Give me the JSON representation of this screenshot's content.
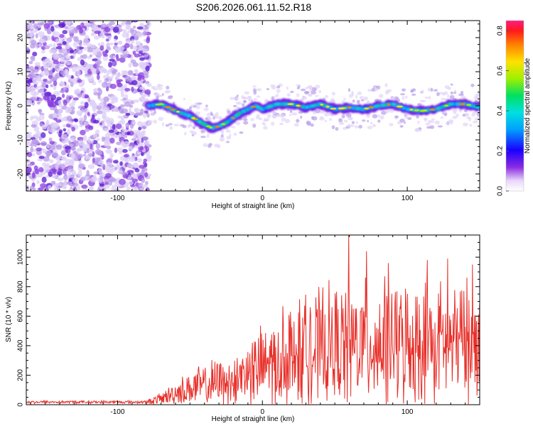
{
  "title": "S206.2026.061.11.52.R18",
  "chart_data": [
    {
      "type": "heatmap",
      "xlabel": "Height of straight line (km)",
      "ylabel": "Frequency (Hz)",
      "xlim": [
        -163,
        150
      ],
      "ylim": [
        -25,
        25
      ],
      "xticks": [
        -100,
        0,
        100
      ],
      "yticks": [
        -20,
        -10,
        0,
        10,
        20
      ],
      "noise_region_x": [
        -163,
        -78
      ],
      "ridge": {
        "x": [
          -78,
          -70,
          -60,
          -50,
          -40,
          -35,
          -30,
          -25,
          -20,
          -15,
          -10,
          -5,
          0,
          10,
          20,
          30,
          40,
          50,
          60,
          70,
          80,
          90,
          100,
          110,
          120,
          130,
          140,
          150
        ],
        "y": [
          0,
          0.5,
          -1.5,
          -3,
          -5.5,
          -6.5,
          -6,
          -5,
          -3.5,
          -2,
          -1,
          0,
          -1,
          0.5,
          0.5,
          -0.5,
          0.5,
          -1,
          -0.5,
          -1,
          0,
          0.5,
          -1,
          -1.5,
          -1,
          0.5,
          0.5,
          -0.5
        ]
      },
      "colorbar": {
        "label": "Normalized spectral amplitude",
        "range": [
          0,
          0.85
        ],
        "ticks": [
          0.0,
          0.2,
          0.4,
          0.6,
          0.8
        ],
        "tick_labels": [
          "0.0",
          "0.2",
          "0.4",
          "0.6",
          "0.8"
        ]
      }
    },
    {
      "type": "line",
      "xlabel": "Height of straight line (km)",
      "ylabel": "SNR (10 * v/v)",
      "xlim": [
        -163,
        150
      ],
      "ylim": [
        0,
        1150
      ],
      "xticks": [
        -100,
        0,
        100
      ],
      "yticks": [
        0,
        200,
        400,
        600,
        800,
        1000
      ],
      "color": "#e8302a",
      "envelope": {
        "x": [
          -163,
          -80,
          -70,
          -60,
          -50,
          -40,
          -30,
          -20,
          -10,
          0,
          10,
          20,
          30,
          40,
          50,
          60,
          70,
          80,
          90,
          100,
          110,
          120,
          130,
          140,
          150
        ],
        "base": [
          18,
          18,
          40,
          80,
          110,
          130,
          150,
          180,
          220,
          260,
          300,
          330,
          360,
          380,
          400,
          400,
          420,
          420,
          420,
          420,
          430,
          420,
          420,
          430,
          420
        ],
        "amp": [
          12,
          12,
          50,
          90,
          140,
          170,
          190,
          220,
          260,
          320,
          380,
          420,
          440,
          460,
          470,
          480,
          480,
          480,
          480,
          470,
          480,
          480,
          470,
          470,
          460
        ]
      },
      "peaks": [
        {
          "x": 59.5,
          "y": 1150
        },
        {
          "x": 72,
          "y": 1040
        },
        {
          "x": 87,
          "y": 960
        },
        {
          "x": 128,
          "y": 990
        },
        {
          "x": 114,
          "y": 980
        },
        {
          "x": 145,
          "y": 950
        }
      ]
    }
  ]
}
